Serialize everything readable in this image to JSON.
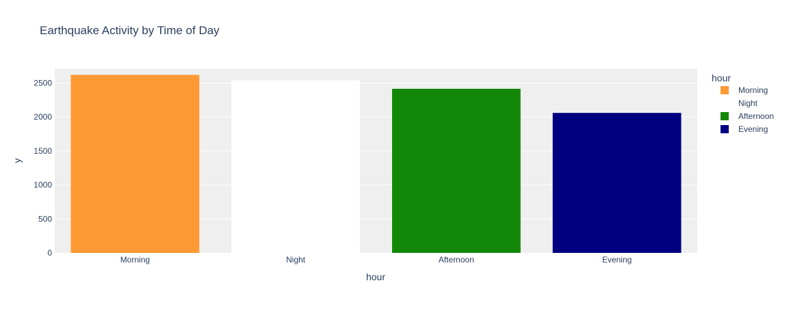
{
  "chart_data": {
    "type": "bar",
    "title": "Earthquake Activity by Time of Day",
    "xlabel": "hour",
    "ylabel": "y",
    "categories": [
      "Morning",
      "Night",
      "Afternoon",
      "Evening"
    ],
    "values": [
      2620,
      2540,
      2415,
      2060
    ],
    "colors": [
      "#ff9933",
      "#ffffff",
      "#138808",
      "#000080"
    ],
    "ylim": [
      0,
      2716
    ],
    "yticks": [
      0,
      500,
      1000,
      1500,
      2000,
      2500
    ],
    "grid": true,
    "plot_background": "#efefef",
    "legend": {
      "title": "hour",
      "placement": "right",
      "items": [
        "Morning",
        "Night",
        "Afternoon",
        "Evening"
      ]
    }
  }
}
